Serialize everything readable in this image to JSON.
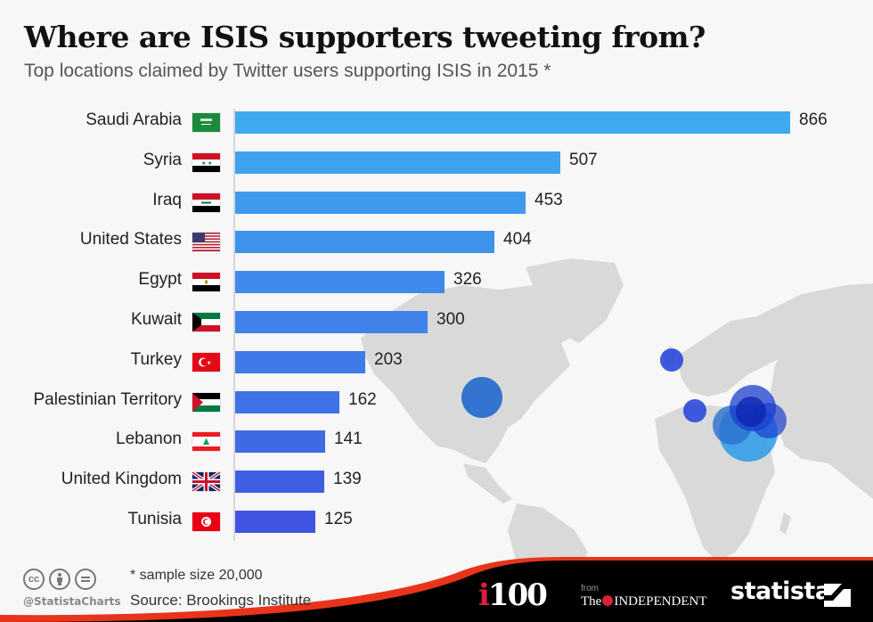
{
  "header": {
    "title": "Where are ISIS supporters tweeting from?",
    "subtitle": "Top locations claimed by Twitter users supporting ISIS in 2015 *"
  },
  "chart_data": {
    "type": "bar",
    "orientation": "horizontal",
    "title": "Where are ISIS supporters tweeting from?",
    "subtitle": "Top locations claimed by Twitter users supporting ISIS in 2015 *",
    "xlabel": "",
    "ylabel": "",
    "categories": [
      "Saudi Arabia",
      "Syria",
      "Iraq",
      "United States",
      "Egypt",
      "Kuwait",
      "Turkey",
      "Palestinian Territory",
      "Lebanon",
      "United Kingdom",
      "Tunisia"
    ],
    "values": [
      866,
      507,
      453,
      404,
      326,
      300,
      203,
      162,
      141,
      139,
      125
    ],
    "xlim": [
      0,
      866
    ],
    "grid": false,
    "data_labels": true,
    "background": "world bubble map with circles over Middle East, US, UK and Tunisia"
  },
  "rows": [
    {
      "label": "Saudi Arabia",
      "value": "866",
      "flag": "saudi-arabia-flag",
      "color": "#3fa9ef"
    },
    {
      "label": "Syria",
      "value": "507",
      "flag": "syria-flag",
      "color": "#3fa2ee"
    },
    {
      "label": "Iraq",
      "value": "453",
      "flag": "iraq-flag",
      "color": "#3f9aed"
    },
    {
      "label": "United States",
      "value": "404",
      "flag": "usa-flag",
      "color": "#3f92ec"
    },
    {
      "label": "Egypt",
      "value": "326",
      "flag": "egypt-flag",
      "color": "#3f8aea"
    },
    {
      "label": "Kuwait",
      "value": "300",
      "flag": "kuwait-flag",
      "color": "#3f82e9"
    },
    {
      "label": "Turkey",
      "value": "203",
      "flag": "turkey-flag",
      "color": "#3f7ae8"
    },
    {
      "label": "Palestinian Territory",
      "value": "162",
      "flag": "palestine-flag",
      "color": "#3f72e6"
    },
    {
      "label": "Lebanon",
      "value": "141",
      "flag": "lebanon-flag",
      "color": "#3f69e5"
    },
    {
      "label": "United Kingdom",
      "value": "139",
      "flag": "uk-flag",
      "color": "#3f5fe3"
    },
    {
      "label": "Tunisia",
      "value": "125",
      "flag": "tunisia-flag",
      "color": "#3f55e1"
    }
  ],
  "footer": {
    "note": "* sample size 20,000",
    "source": "Source: Brookings Institute",
    "handle": "@StatistaCharts",
    "cc_icons": [
      "cc-icon",
      "by-icon",
      "nd-icon"
    ],
    "cc_text": "cc",
    "partner_i": "i",
    "partner_100": "100",
    "from": "from",
    "the": "The",
    "independent": "INDEPENDENT",
    "brand": "statista"
  },
  "colors": {
    "accent_red": "#d8203c",
    "footer_black": "#000000",
    "map_land": "#d9d9d9",
    "bubble_blue": "#1f4fd6"
  }
}
